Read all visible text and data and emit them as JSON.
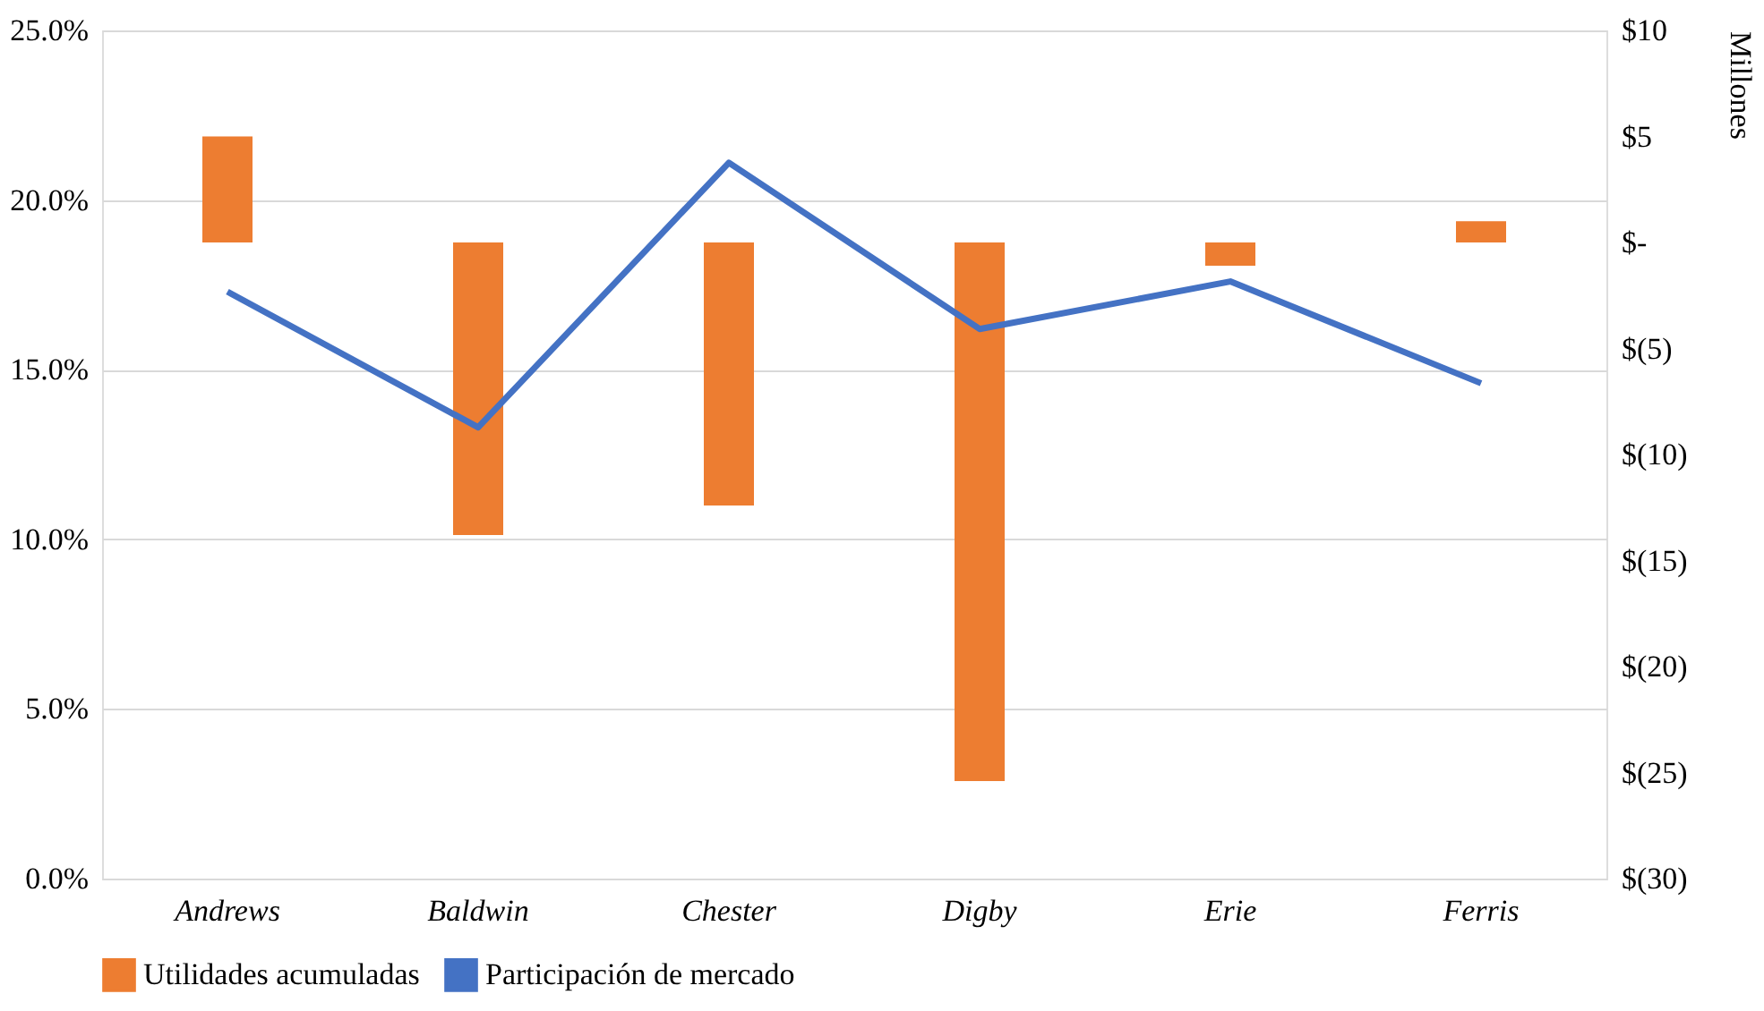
{
  "chart_data": {
    "type": "bar",
    "categories": [
      "Andrews",
      "Baldwin",
      "Chester",
      "Digby",
      "Erie",
      "Ferris"
    ],
    "series": [
      {
        "name": "Utilidades acumuladas",
        "axis": "y2",
        "color": "#ed7d31",
        "values": [
          5.0,
          -13.8,
          -12.4,
          -25.4,
          -1.1,
          1.0
        ]
      },
      {
        "name": "Participación de mercado",
        "type": "line",
        "color": "#4472c4",
        "values": [
          17.3,
          13.3,
          21.1,
          16.2,
          17.6,
          14.6
        ]
      }
    ],
    "ylim": [
      0,
      25
    ],
    "yticks": [
      {
        "value": 0,
        "label": "0.0%"
      },
      {
        "value": 5,
        "label": "5.0%"
      },
      {
        "value": 10,
        "label": "10.0%"
      },
      {
        "value": 15,
        "label": "15.0%"
      },
      {
        "value": 20,
        "label": "20.0%"
      },
      {
        "value": 25,
        "label": "25.0%"
      }
    ],
    "y2lim": [
      -30,
      10
    ],
    "y2ticks": [
      {
        "value": -30,
        "label": "$(30)"
      },
      {
        "value": -25,
        "label": "$(25)"
      },
      {
        "value": -20,
        "label": "$(20)"
      },
      {
        "value": -15,
        "label": "$(15)"
      },
      {
        "value": -10,
        "label": "$(10)"
      },
      {
        "value": -5,
        "label": "$(5)"
      },
      {
        "value": 0,
        "label": "$-"
      },
      {
        "value": 5,
        "label": "$5"
      },
      {
        "value": 10,
        "label": "$10"
      }
    ],
    "y2label": "Millones",
    "grid": "y",
    "legend": "bottom",
    "marker": "none",
    "line_style": "solid"
  }
}
